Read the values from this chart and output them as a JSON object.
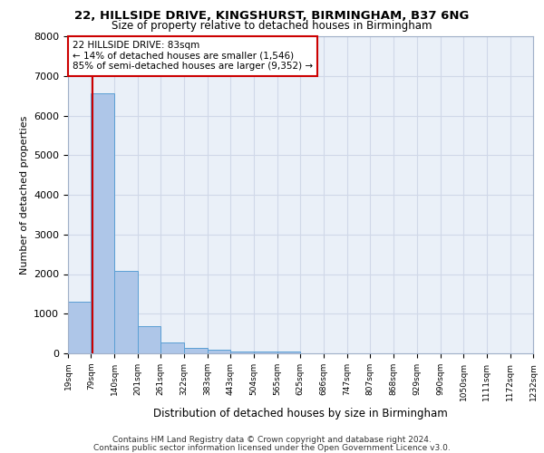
{
  "title_line1": "22, HILLSIDE DRIVE, KINGSHURST, BIRMINGHAM, B37 6NG",
  "title_line2": "Size of property relative to detached houses in Birmingham",
  "xlabel": "Distribution of detached houses by size in Birmingham",
  "ylabel": "Number of detached properties",
  "footer_line1": "Contains HM Land Registry data © Crown copyright and database right 2024.",
  "footer_line2": "Contains public sector information licensed under the Open Government Licence v3.0.",
  "annotation_line1": "22 HILLSIDE DRIVE: 83sqm",
  "annotation_line2": "← 14% of detached houses are smaller (1,546)",
  "annotation_line3": "85% of semi-detached houses are larger (9,352) →",
  "property_size": 83,
  "bar_edges": [
    19,
    79,
    140,
    201,
    261,
    322,
    383,
    443,
    504,
    565,
    625,
    686,
    747,
    807,
    868,
    929,
    990,
    1050,
    1111,
    1172,
    1232
  ],
  "bar_heights": [
    1300,
    6550,
    2070,
    680,
    270,
    140,
    95,
    55,
    50,
    50,
    10,
    0,
    0,
    0,
    0,
    0,
    0,
    0,
    0,
    0
  ],
  "bar_color": "#aec6e8",
  "bar_edge_color": "#5a9fd4",
  "vline_color": "#cc0000",
  "vline_x": 83,
  "annotation_box_color": "#cc0000",
  "ylim": [
    0,
    8000
  ],
  "yticks": [
    0,
    1000,
    2000,
    3000,
    4000,
    5000,
    6000,
    7000,
    8000
  ],
  "grid_color": "#d0d8e8",
  "bg_color": "#eaf0f8"
}
